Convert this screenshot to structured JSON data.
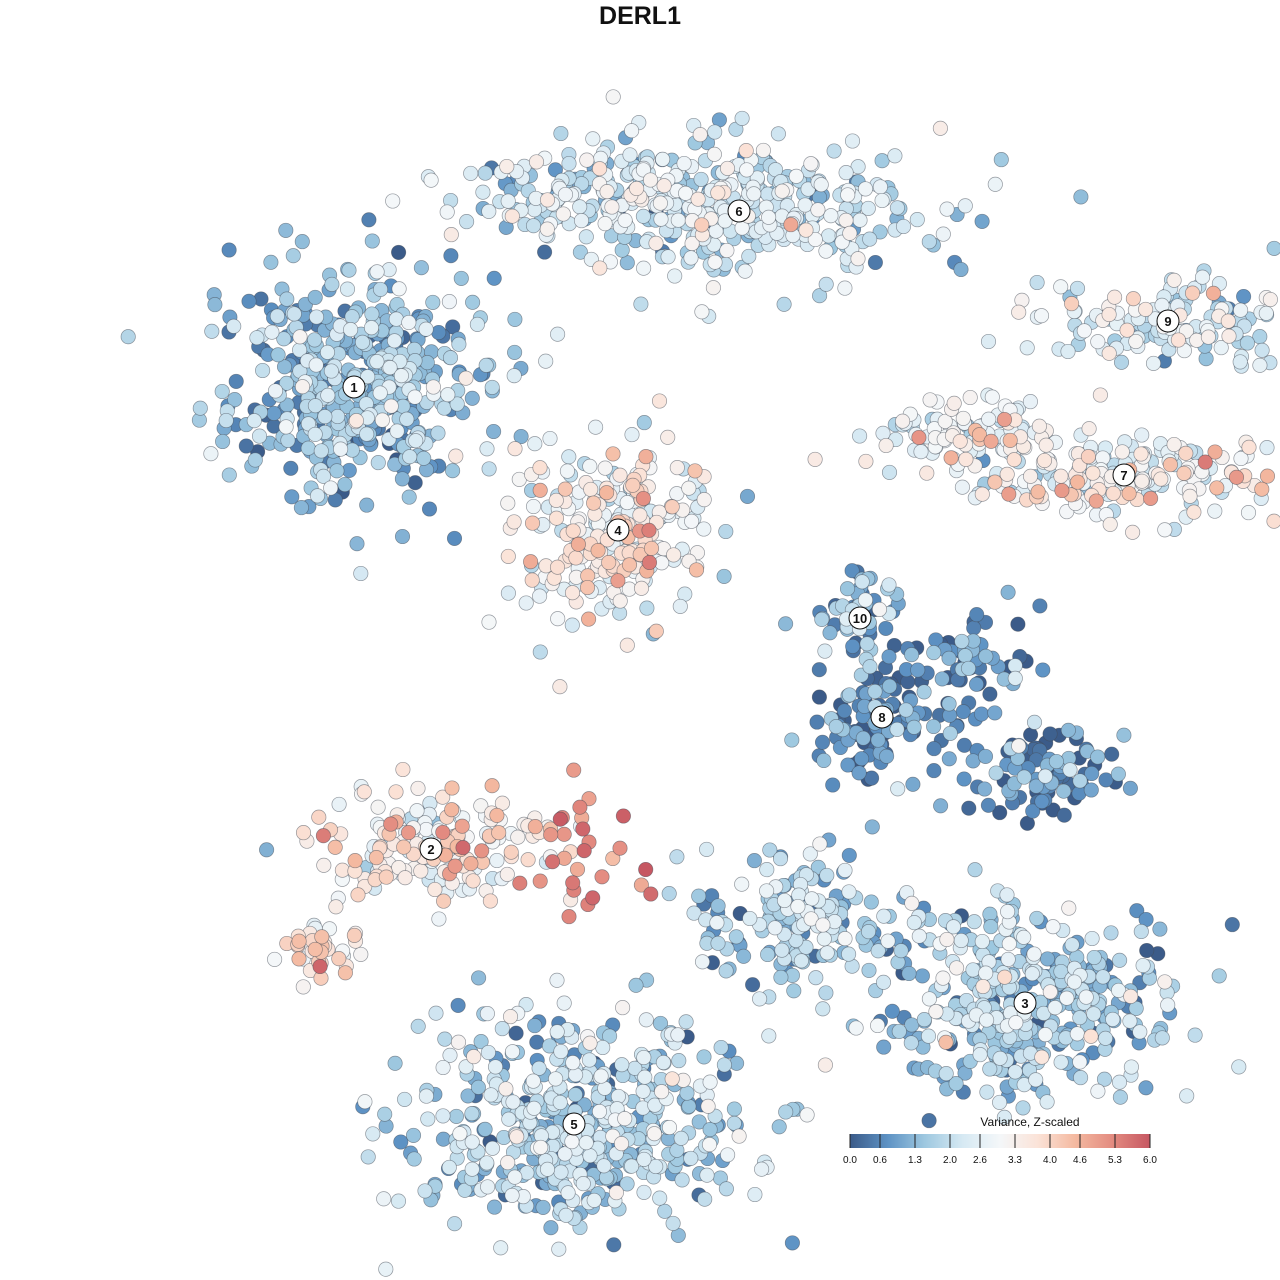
{
  "title": "DERL1",
  "chart_data": {
    "type": "scatter",
    "title": "DERL1",
    "xlabel": "",
    "ylabel": "",
    "grid": false,
    "legend_placement": "bottom-right",
    "colorbar": {
      "title": "Variance, Z-scaled",
      "ticks": [
        "0.0",
        "0.6",
        "1.3",
        "2.0",
        "2.6",
        "3.3",
        "4.0",
        "4.6",
        "5.3",
        "6.0"
      ],
      "range": [
        0,
        6
      ],
      "colors": [
        "#3b5b89",
        "#5d92c4",
        "#9ec8e0",
        "#d6e9f3",
        "#f4f7f9",
        "#fbe3d8",
        "#f4b9a0",
        "#e38b80",
        "#c65762"
      ]
    },
    "clusters": [
      {
        "label": "1",
        "center": [
          -2.6,
          2.3
        ],
        "mean_value": 1.3
      },
      {
        "label": "2",
        "center": [
          -1.9,
          -1.9
        ],
        "mean_value": 3.4
      },
      {
        "label": "3",
        "center": [
          3.5,
          -3.3
        ],
        "mean_value": 1.7
      },
      {
        "label": "4",
        "center": [
          -0.2,
          1.0
        ],
        "mean_value": 3.0
      },
      {
        "label": "5",
        "center": [
          -0.6,
          -4.4
        ],
        "mean_value": 1.8
      },
      {
        "label": "6",
        "center": [
          0.9,
          3.9
        ],
        "mean_value": 2.2
      },
      {
        "label": "7",
        "center": [
          4.4,
          1.5
        ],
        "mean_value": 2.9
      },
      {
        "label": "8",
        "center": [
          2.2,
          -0.7
        ],
        "mean_value": 0.7
      },
      {
        "label": "9",
        "center": [
          4.8,
          2.9
        ],
        "mean_value": 2.4
      },
      {
        "label": "10",
        "center": [
          2.0,
          0.2
        ],
        "mean_value": 1.2
      }
    ]
  }
}
